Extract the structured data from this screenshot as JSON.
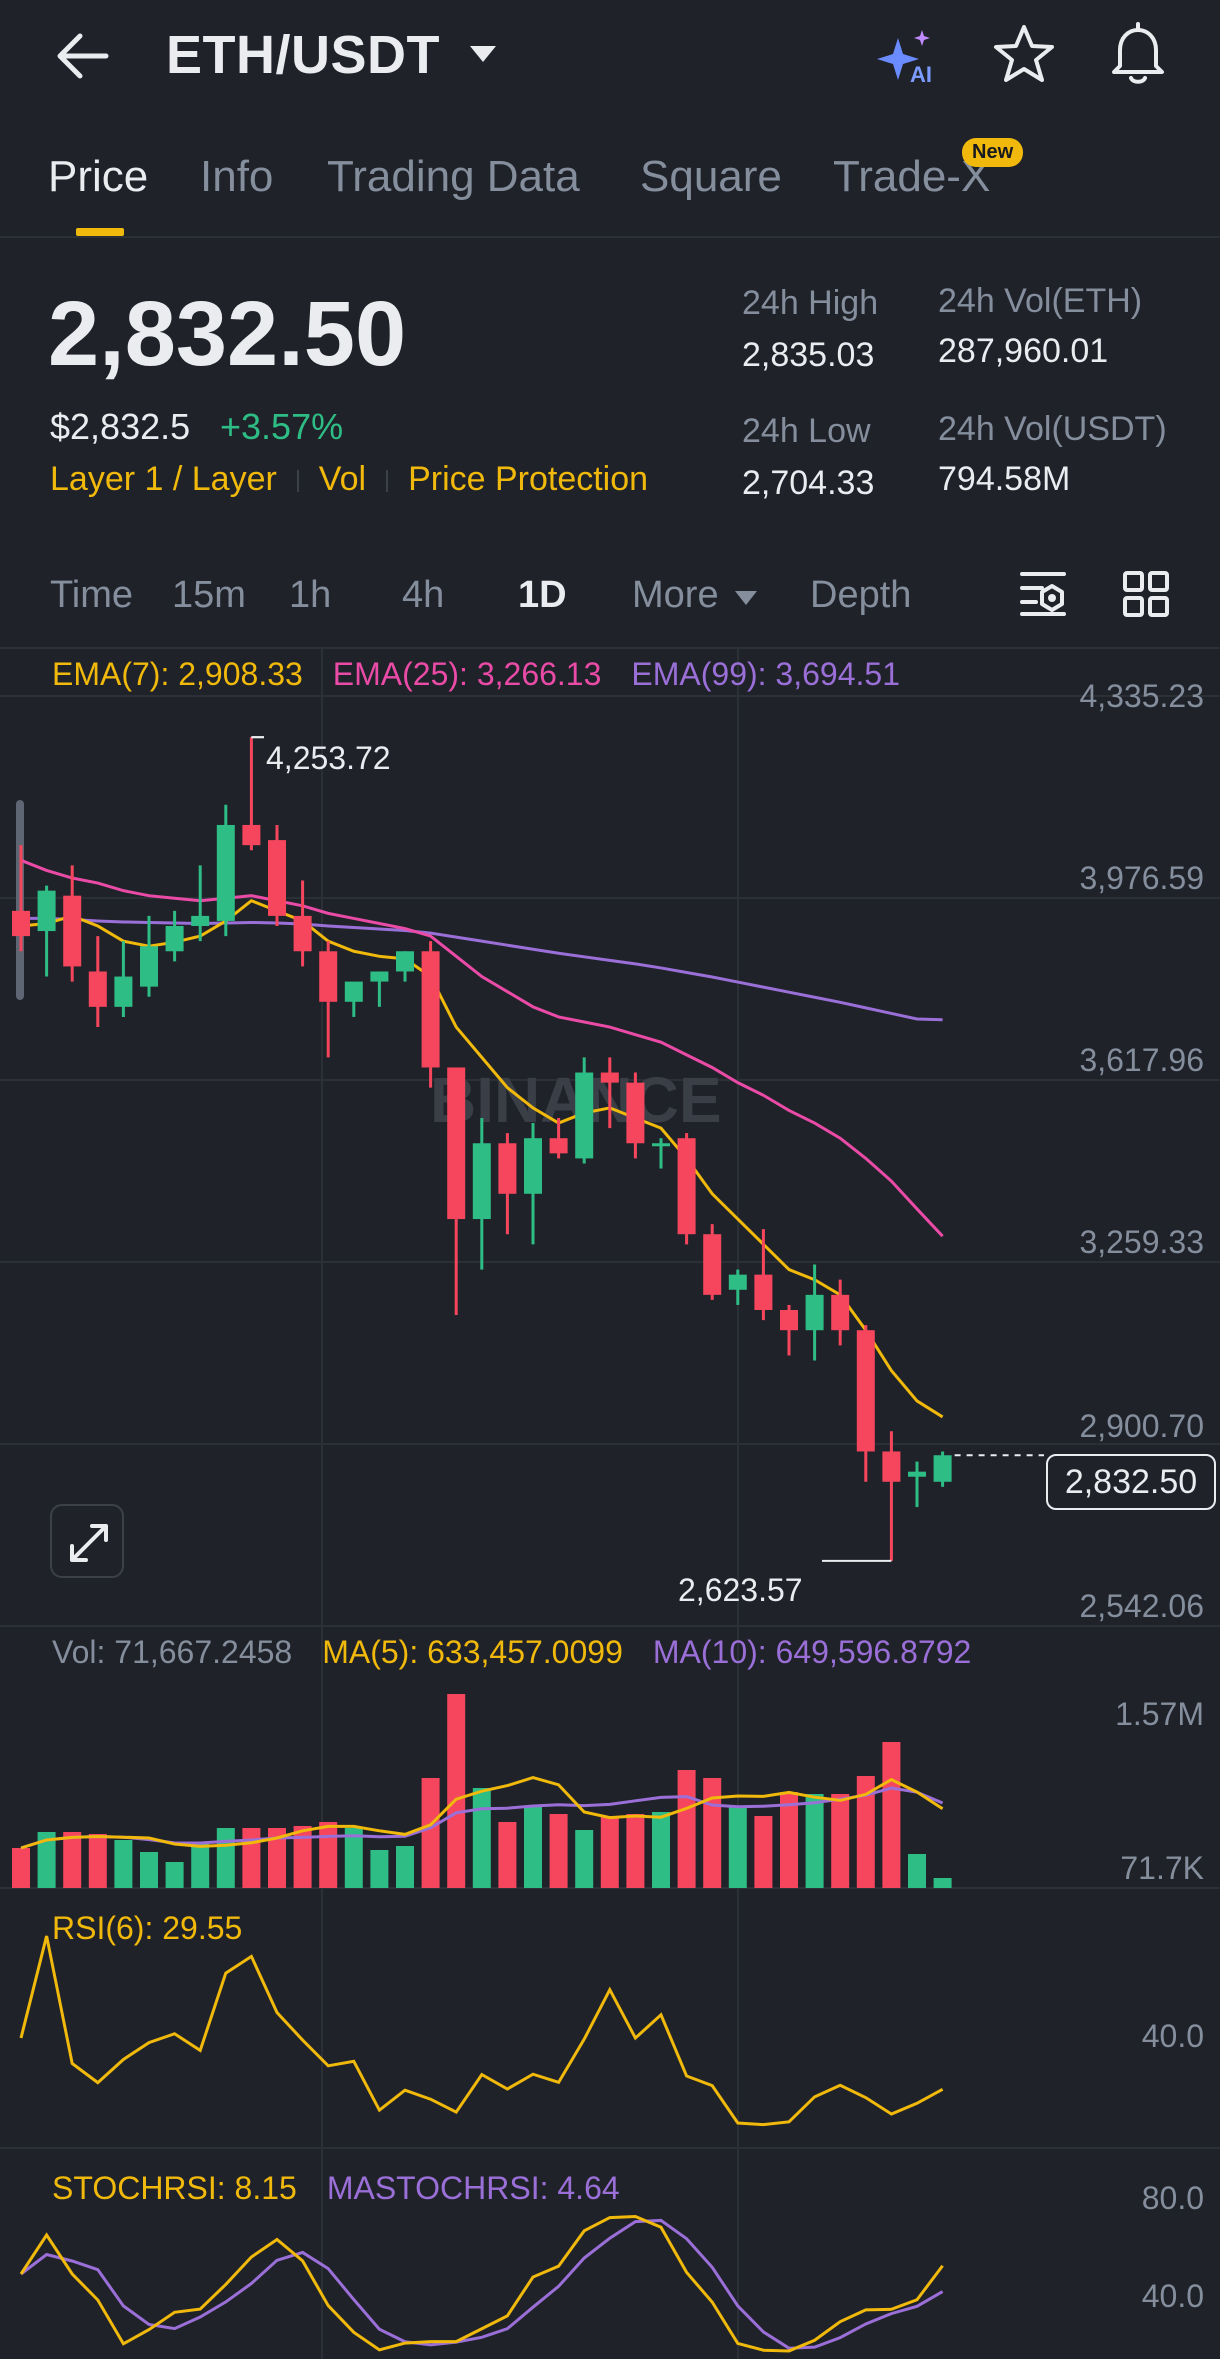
{
  "header": {
    "pair": "ETH/USDT",
    "icons": {
      "back": "back-arrow-icon",
      "ai": "ai-sparkle-icon",
      "favorite": "star-icon",
      "alert": "bell-icon"
    }
  },
  "tabs": [
    {
      "label": "Price",
      "active": true
    },
    {
      "label": "Info"
    },
    {
      "label": "Trading Data"
    },
    {
      "label": "Square"
    },
    {
      "label": "Trade-X",
      "badge": "New"
    }
  ],
  "ticker": {
    "last_price": "2,832.50",
    "usd_price": "$2,832.5",
    "change": "+3.57%",
    "tags": [
      "Layer 1 / Layer",
      "Vol",
      "Price Protection"
    ],
    "high_label": "24h High",
    "high_value": "2,835.03",
    "low_label": "24h Low",
    "low_value": "2,704.33",
    "vol_base_label": "24h Vol(ETH)",
    "vol_base_value": "287,960.01",
    "vol_quote_label": "24h Vol(USDT)",
    "vol_quote_value": "794.58M"
  },
  "intervals": {
    "items": [
      "Time",
      "15m",
      "1h",
      "4h",
      "1D",
      "More",
      "Depth"
    ],
    "active": "1D"
  },
  "colors": {
    "up": "#2ebd85",
    "down": "#f6465d",
    "ema7": "#f0b90b",
    "ema25": "#e94ba6",
    "ema99": "#9b6fd8",
    "accent": "#f0b90b"
  },
  "main_chart": {
    "legend": {
      "ema7": "EMA(7): 2,908.33",
      "ema25": "EMA(25): 3,266.13",
      "ema99": "EMA(99): 3,694.51"
    },
    "axis_labels": [
      "4,335.23",
      "3,976.59",
      "3,617.96",
      "3,259.33",
      "2,900.70",
      "2,542.06"
    ],
    "current_price_tag": "2,832.50",
    "high_marker": "4,253.72",
    "low_marker": "2,623.57",
    "watermark": "BINANCE"
  },
  "volume_chart": {
    "legend": {
      "vol": "Vol: 71,667.2458",
      "ma5": "MA(5): 633,457.0099",
      "ma10": "MA(10): 649,596.8792"
    },
    "axis_labels": [
      "1.57M",
      "71.7K"
    ]
  },
  "rsi_chart": {
    "legend": "RSI(6): 29.55",
    "axis_labels": [
      "40.0"
    ]
  },
  "stochrsi_chart": {
    "legend": {
      "stoch": "STOCHRSI: 8.15",
      "ma": "MASTOCHRSI: 4.64"
    },
    "axis_labels": [
      "80.0",
      "40.0"
    ]
  },
  "chart_data": {
    "type": "candlestick",
    "y_range": [
      2542.06,
      4335.23
    ],
    "candles": [
      {
        "o": 3910,
        "h": 4040,
        "l": 3830,
        "c": 3860
      },
      {
        "o": 3870,
        "h": 3960,
        "l": 3780,
        "c": 3950
      },
      {
        "o": 3940,
        "h": 4000,
        "l": 3770,
        "c": 3800
      },
      {
        "o": 3790,
        "h": 3860,
        "l": 3680,
        "c": 3720
      },
      {
        "o": 3720,
        "h": 3850,
        "l": 3700,
        "c": 3780
      },
      {
        "o": 3760,
        "h": 3900,
        "l": 3740,
        "c": 3840
      },
      {
        "o": 3830,
        "h": 3910,
        "l": 3810,
        "c": 3880
      },
      {
        "o": 3880,
        "h": 4000,
        "l": 3850,
        "c": 3900
      },
      {
        "o": 3890,
        "h": 4120,
        "l": 3860,
        "c": 4080
      },
      {
        "o": 4080,
        "h": 4253.72,
        "l": 4030,
        "c": 4040
      },
      {
        "o": 4050,
        "h": 4080,
        "l": 3880,
        "c": 3900
      },
      {
        "o": 3900,
        "h": 3970,
        "l": 3800,
        "c": 3830
      },
      {
        "o": 3830,
        "h": 3850,
        "l": 3620,
        "c": 3730
      },
      {
        "o": 3730,
        "h": 3760,
        "l": 3700,
        "c": 3770
      },
      {
        "o": 3770,
        "h": 3780,
        "l": 3720,
        "c": 3790
      },
      {
        "o": 3790,
        "h": 3830,
        "l": 3770,
        "c": 3830
      },
      {
        "o": 3830,
        "h": 3850,
        "l": 3560,
        "c": 3600
      },
      {
        "o": 3600,
        "h": 3590,
        "l": 3110,
        "c": 3300
      },
      {
        "o": 3300,
        "h": 3500,
        "l": 3200,
        "c": 3450
      },
      {
        "o": 3450,
        "h": 3470,
        "l": 3270,
        "c": 3350
      },
      {
        "o": 3350,
        "h": 3490,
        "l": 3250,
        "c": 3460
      },
      {
        "o": 3460,
        "h": 3500,
        "l": 3420,
        "c": 3430
      },
      {
        "o": 3420,
        "h": 3620,
        "l": 3410,
        "c": 3590
      },
      {
        "o": 3590,
        "h": 3620,
        "l": 3480,
        "c": 3570
      },
      {
        "o": 3570,
        "h": 3590,
        "l": 3420,
        "c": 3450
      },
      {
        "o": 3450,
        "h": 3460,
        "l": 3400,
        "c": 3450
      },
      {
        "o": 3460,
        "h": 3470,
        "l": 3250,
        "c": 3270
      },
      {
        "o": 3270,
        "h": 3290,
        "l": 3140,
        "c": 3150
      },
      {
        "o": 3160,
        "h": 3200,
        "l": 3130,
        "c": 3190
      },
      {
        "o": 3190,
        "h": 3280,
        "l": 3100,
        "c": 3120
      },
      {
        "o": 3120,
        "h": 3130,
        "l": 3030,
        "c": 3080
      },
      {
        "o": 3080,
        "h": 3210,
        "l": 3020,
        "c": 3150
      },
      {
        "o": 3150,
        "h": 3180,
        "l": 3050,
        "c": 3080
      },
      {
        "o": 3080,
        "h": 3090,
        "l": 2780,
        "c": 2840
      },
      {
        "o": 2840,
        "h": 2880,
        "l": 2623.57,
        "c": 2780
      },
      {
        "o": 2790,
        "h": 2820,
        "l": 2730,
        "c": 2800
      },
      {
        "o": 2780,
        "h": 2840,
        "l": 2770,
        "c": 2832.5
      }
    ],
    "ema7": [
      3880,
      3885,
      3900,
      3880,
      3850,
      3840,
      3848,
      3860,
      3890,
      3930,
      3910,
      3890,
      3850,
      3830,
      3820,
      3815,
      3780,
      3680,
      3620,
      3560,
      3520,
      3490,
      3510,
      3520,
      3500,
      3480,
      3420,
      3350,
      3300,
      3250,
      3200,
      3180,
      3150,
      3080,
      3000,
      2940,
      2908.33
    ],
    "ema25": [
      4010,
      3990,
      3975,
      3965,
      3950,
      3940,
      3935,
      3930,
      3935,
      3940,
      3930,
      3920,
      3905,
      3895,
      3885,
      3875,
      3860,
      3820,
      3780,
      3750,
      3720,
      3700,
      3690,
      3680,
      3665,
      3650,
      3625,
      3600,
      3570,
      3545,
      3515,
      3490,
      3460,
      3420,
      3375,
      3320,
      3266.13
    ],
    "ema99": [
      3895,
      3895,
      3893,
      3890,
      3888,
      3887,
      3886,
      3885,
      3886,
      3887,
      3886,
      3884,
      3880,
      3877,
      3874,
      3871,
      3866,
      3858,
      3850,
      3842,
      3834,
      3826,
      3819,
      3812,
      3805,
      3797,
      3788,
      3779,
      3769,
      3759,
      3749,
      3739,
      3729,
      3718,
      3707,
      3696,
      3694.51
    ],
    "volume": [
      0.2,
      0.28,
      0.28,
      0.27,
      0.24,
      0.18,
      0.13,
      0.22,
      0.3,
      0.3,
      0.3,
      0.31,
      0.33,
      0.3,
      0.19,
      0.21,
      0.55,
      0.97,
      0.5,
      0.33,
      0.41,
      0.37,
      0.29,
      0.36,
      0.37,
      0.38,
      0.59,
      0.55,
      0.41,
      0.36,
      0.48,
      0.47,
      0.47,
      0.56,
      0.73,
      0.17,
      0.05
    ]
  }
}
